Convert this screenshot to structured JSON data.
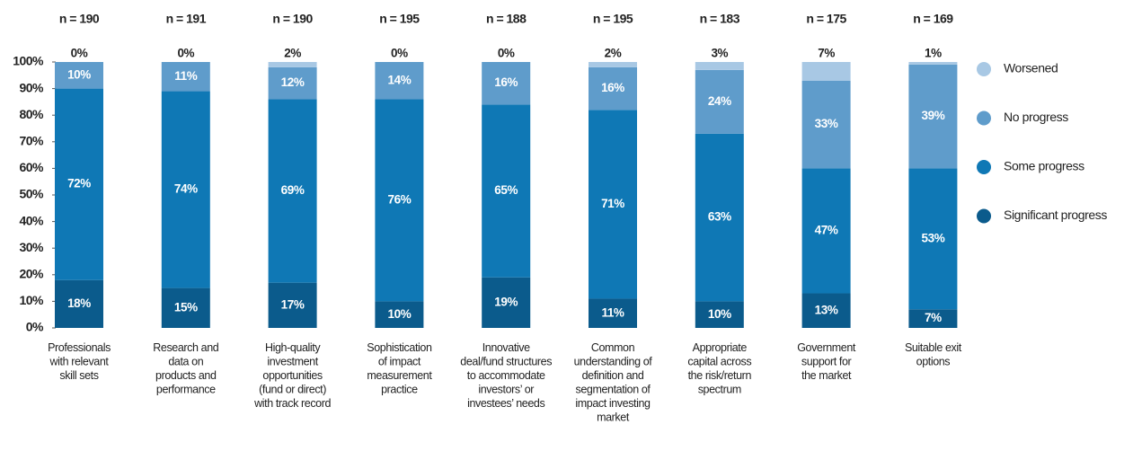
{
  "chart_data": {
    "type": "stacked_bar",
    "sample_sizes": [
      "n = 190",
      "n = 191",
      "n = 190",
      "n = 195",
      "n = 188",
      "n = 195",
      "n = 183",
      "n = 175",
      "n = 169"
    ],
    "categories": [
      [
        "Professionals",
        "with relevant",
        "skill sets"
      ],
      [
        "Research and",
        "data on",
        "products and",
        "performance"
      ],
      [
        "High-quality",
        "investment",
        "opportunities",
        "(fund or direct)",
        "with track record"
      ],
      [
        "Sophistication",
        "of impact",
        "measurement",
        "practice"
      ],
      [
        "Innovative",
        "deal/fund structures",
        "to accommodate",
        "investors’ or",
        "investees’ needs"
      ],
      [
        "Common",
        "understanding of",
        "definition and",
        "segmentation of",
        "impact investing",
        "market"
      ],
      [
        "Appropriate",
        "capital across",
        "the risk/return",
        "spectrum"
      ],
      [
        "Government",
        "support for",
        "the market"
      ],
      [
        "Suitable exit",
        "options"
      ]
    ],
    "series": [
      {
        "name": "Significant progress",
        "color": "#0b5b8c",
        "values": [
          18,
          15,
          17,
          10,
          19,
          11,
          10,
          13,
          7
        ],
        "value_labels": [
          "18%",
          "15%",
          "17%",
          "10%",
          "19%",
          "11%",
          "10%",
          "13%",
          "7%"
        ]
      },
      {
        "name": "Some progress",
        "color": "#0f78b5",
        "values": [
          72,
          74,
          69,
          76,
          65,
          71,
          63,
          47,
          53
        ],
        "value_labels": [
          "72%",
          "74%",
          "69%",
          "76%",
          "65%",
          "71%",
          "63%",
          "47%",
          "53%"
        ]
      },
      {
        "name": "No progress",
        "color": "#5f9ccb",
        "values": [
          10,
          11,
          12,
          14,
          16,
          16,
          24,
          33,
          39
        ],
        "value_labels": [
          "10%",
          "11%",
          "12%",
          "14%",
          "16%",
          "16%",
          "24%",
          "33%",
          "39%"
        ]
      },
      {
        "name": "Worsened",
        "color": "#a8c8e4",
        "values": [
          0,
          0,
          2,
          0,
          0,
          2,
          3,
          7,
          1
        ],
        "value_labels": [
          "0%",
          "0%",
          "2%",
          "0%",
          "0%",
          "2%",
          "3%",
          "7%",
          "1%"
        ]
      }
    ],
    "ylim": [
      0,
      100
    ],
    "yticks": [
      {
        "value": 0,
        "label": "0%"
      },
      {
        "value": 10,
        "label": "10%"
      },
      {
        "value": 20,
        "label": "20%"
      },
      {
        "value": 30,
        "label": "30%"
      },
      {
        "value": 40,
        "label": "40%"
      },
      {
        "value": 50,
        "label": "50%"
      },
      {
        "value": 60,
        "label": "60%"
      },
      {
        "value": 70,
        "label": "70%"
      },
      {
        "value": 80,
        "label": "80%"
      },
      {
        "value": 90,
        "label": "90%"
      },
      {
        "value": 100,
        "label": "100%"
      }
    ],
    "legend": "right"
  }
}
